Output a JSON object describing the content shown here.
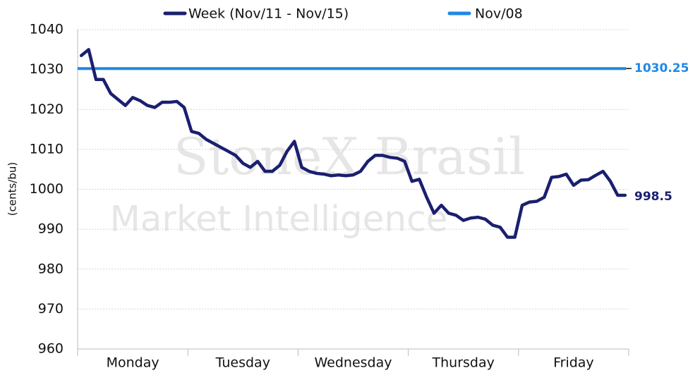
{
  "chart_data": {
    "type": "line",
    "watermark": [
      "StoneX Brasil",
      "Market Intelligence"
    ],
    "ylabel": "(cents/bu)",
    "ylim": [
      960,
      1040
    ],
    "yticks": [
      960,
      970,
      980,
      990,
      1000,
      1010,
      1020,
      1030,
      1040
    ],
    "grid": true,
    "legend": "top",
    "categories": [
      null,
      null,
      null,
      null,
      null,
      null,
      null,
      "Monday",
      null,
      null,
      null,
      null,
      null,
      null,
      null,
      null,
      null,
      null,
      null,
      null,
      null,
      null,
      "Tuesday",
      null,
      null,
      null,
      null,
      null,
      null,
      null,
      null,
      null,
      null,
      null,
      null,
      null,
      null,
      "Wednesday",
      null,
      null,
      null,
      null,
      null,
      null,
      null,
      null,
      null,
      null,
      null,
      null,
      null,
      null,
      "Thursday",
      null,
      null,
      null,
      null,
      null,
      null,
      null,
      null,
      null,
      null,
      null,
      null,
      null,
      null,
      "Friday",
      null,
      null,
      null,
      null,
      null,
      null,
      null
    ],
    "series": [
      {
        "name": "Week (Nov/11 - Nov/15)",
        "color": "#1b1f6f",
        "values": [
          1033.5,
          1035,
          1027.5,
          1027.5,
          1024,
          1022.5,
          1021,
          1023,
          1022.2,
          1021,
          1020.5,
          1021.8,
          1021.8,
          1022,
          1020.5,
          1014.5,
          1014,
          1012.5,
          1011.5,
          1010.5,
          1009.5,
          1008.5,
          1006.5,
          1005.5,
          1007,
          1004.5,
          1004.5,
          1006,
          1009.5,
          1012,
          1005.5,
          1004.5,
          1004,
          1003.8,
          1003.4,
          1003.6,
          1003.4,
          1003.6,
          1004.5,
          1007,
          1008.5,
          1008.5,
          1008,
          1007.8,
          1007,
          1002,
          1002.5,
          998,
          994,
          996,
          994,
          993.5,
          992.2,
          992.8,
          993,
          992.5,
          991,
          990.5,
          988,
          988,
          996,
          996.8,
          997,
          998,
          1003,
          1003.2,
          1003.8,
          1001,
          1002.3,
          1002.4,
          1003.5,
          1004.5,
          1002,
          998.5,
          998.5
        ]
      }
    ],
    "reference_line": {
      "name": "Nov/08",
      "value": 1030.25,
      "color": "#1e88e5"
    }
  }
}
